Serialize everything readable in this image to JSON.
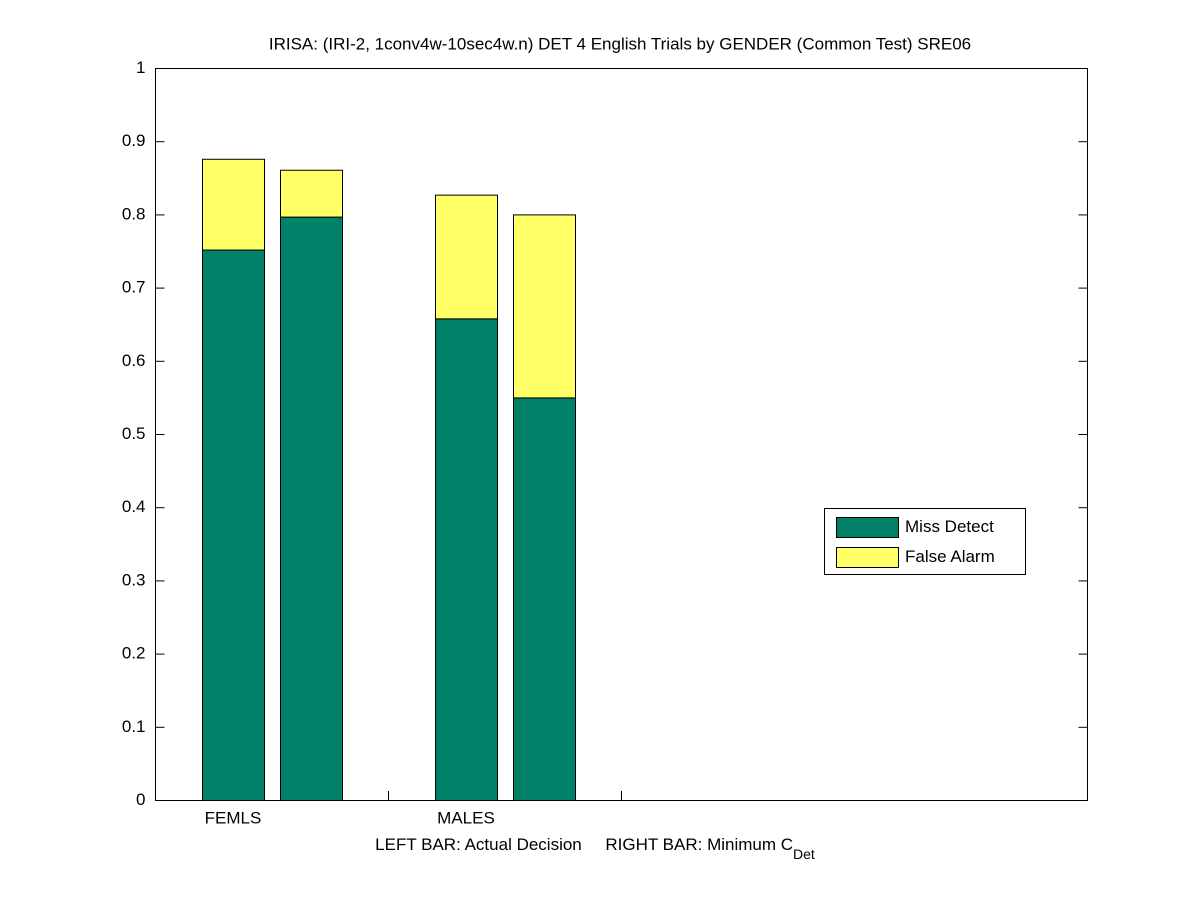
{
  "chart_data": {
    "type": "stacked-bar",
    "title": "IRISA: (IRI-2, 1conv4w-10sec4w.n) DET 4 English Trials by GENDER (Common Test) SRE06",
    "categories": [
      "FEMLS",
      "MALES"
    ],
    "xlabel": {
      "text": "LEFT BAR: Actual Decision     RIGHT BAR: Minimum C",
      "subscript": "Det"
    },
    "series": [
      {
        "name": "Miss Detect",
        "color": "#008066",
        "values": [
          [
            0.752,
            0.797
          ],
          [
            0.658,
            0.55
          ]
        ]
      },
      {
        "name": "False Alarm",
        "color": "#ffff66",
        "values": [
          [
            0.124,
            0.064
          ],
          [
            0.169,
            0.25
          ]
        ]
      }
    ],
    "ylim": [
      0,
      1
    ],
    "yticks": [
      0,
      0.1,
      0.2,
      0.3,
      0.4,
      0.5,
      0.6,
      0.7,
      0.8,
      0.9,
      1
    ],
    "legend": "right"
  }
}
